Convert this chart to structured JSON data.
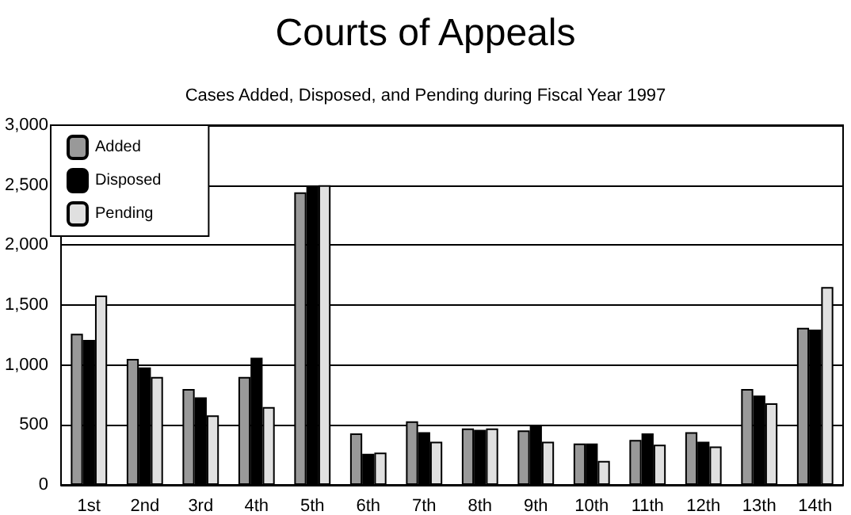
{
  "chart_data": {
    "type": "bar",
    "title": "Courts of Appeals",
    "subtitle": "Cases Added, Disposed, and Pending during Fiscal Year 1997",
    "categories": [
      "1st",
      "2nd",
      "3rd",
      "4th",
      "5th",
      "6th",
      "7th",
      "8th",
      "9th",
      "10th",
      "11th",
      "12th",
      "13th",
      "14th"
    ],
    "series": [
      {
        "name": "Added",
        "color": "#999999",
        "values": [
          1260,
          1050,
          800,
          900,
          2440,
          430,
          530,
          470,
          455,
          345,
          375,
          440,
          800,
          1310
        ]
      },
      {
        "name": "Disposed",
        "color": "#000000",
        "values": [
          1210,
          980,
          730,
          1060,
          2490,
          260,
          440,
          460,
          500,
          345,
          430,
          360,
          745,
          1295
        ]
      },
      {
        "name": "Pending",
        "color": "#e0e0e0",
        "values": [
          1580,
          900,
          580,
          650,
          2500,
          270,
          360,
          470,
          360,
          200,
          335,
          320,
          680,
          1650
        ]
      }
    ],
    "ylim": [
      0,
      3000
    ],
    "yticks": [
      {
        "value": 0,
        "label": "0"
      },
      {
        "value": 500,
        "label": "500"
      },
      {
        "value": 1000,
        "label": "1,000"
      },
      {
        "value": 1500,
        "label": "1,500"
      },
      {
        "value": 2000,
        "label": "2,000"
      },
      {
        "value": 2500,
        "label": "2,500"
      },
      {
        "value": 3000,
        "label": "3,000"
      }
    ],
    "grid": "y",
    "legend": "top left"
  }
}
